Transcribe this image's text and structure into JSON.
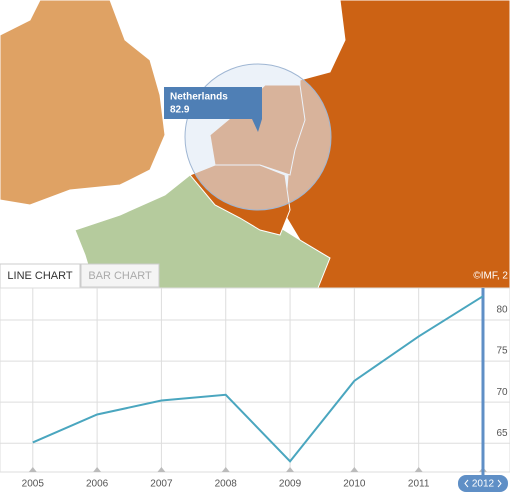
{
  "map": {
    "tooltip": {
      "name": "Netherlands",
      "value": "82.9"
    },
    "credit": "©IMF, 2"
  },
  "tabs": [
    "LINE CHART",
    "BAR CHART"
  ],
  "chart_data": {
    "type": "line",
    "x": [
      2005,
      2006,
      2007,
      2008,
      2009,
      2010,
      2011,
      2012
    ],
    "series": [
      {
        "color": "#4aa6bf",
        "values": [
          65.1,
          68.5,
          70.2,
          70.9,
          62.8,
          72.6,
          78.0,
          82.9
        ]
      }
    ],
    "xlim": [
      2004.49,
      2012.42
    ],
    "xticks": [
      2005,
      2006,
      2007,
      2008,
      2009,
      2010,
      2011,
      2012
    ],
    "ylim": [
      61.5,
      83.9
    ],
    "yticks": [
      65,
      70,
      75,
      80
    ],
    "grid": true,
    "selected": 2012
  }
}
